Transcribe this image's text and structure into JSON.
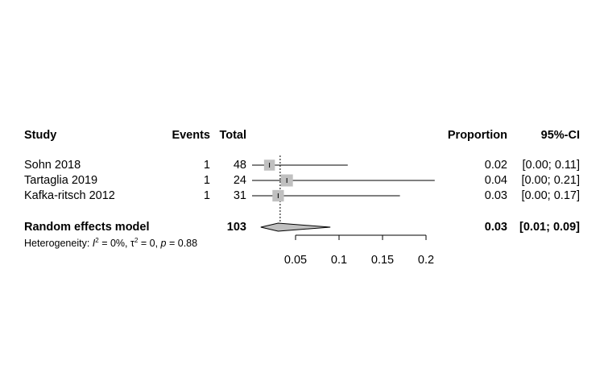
{
  "headers": {
    "study": "Study",
    "events": "Events",
    "total": "Total",
    "proportion": "Proportion",
    "ci": "95%-CI"
  },
  "studies": [
    {
      "name": "Sohn 2018",
      "events": "1",
      "total": "48",
      "proportion": "0.02",
      "ci": "[0.00; 0.11]"
    },
    {
      "name": "Tartaglia 2019",
      "events": "1",
      "total": "24",
      "proportion": "0.04",
      "ci": "[0.00; 0.21]"
    },
    {
      "name": "Kafka-ritsch 2012",
      "events": "1",
      "total": "31",
      "proportion": "0.03",
      "ci": "[0.00; 0.17]"
    }
  ],
  "summary": {
    "label": "Random effects model",
    "total": "103",
    "proportion": "0.03",
    "ci": "[0.01; 0.09]"
  },
  "heterogeneity": {
    "prefix": "Heterogeneity: ",
    "i2_symbol": "I",
    "i2_value": " = 0%, ",
    "tau_symbol": "τ",
    "tau_value": " = 0, ",
    "p_symbol": "p",
    "p_value": " = 0.88"
  },
  "chart_data": {
    "type": "forest",
    "xlim": [
      0,
      0.2
    ],
    "ticks": [
      0.05,
      0.1,
      0.15,
      0.2
    ],
    "tick_labels": [
      "0.05",
      "0.1",
      "0.15",
      "0.2"
    ],
    "reference_line": 0.0323,
    "studies": [
      {
        "name": "Sohn 2018",
        "estimate": 0.02,
        "lower": 0.0,
        "upper": 0.11,
        "weight": 0.9
      },
      {
        "name": "Tartaglia 2019",
        "estimate": 0.04,
        "lower": 0.0,
        "upper": 0.21,
        "weight": 1.0
      },
      {
        "name": "Kafka-ritsch 2012",
        "estimate": 0.03,
        "lower": 0.0,
        "upper": 0.17,
        "weight": 0.95
      }
    ],
    "summary": {
      "estimate": 0.03,
      "lower": 0.01,
      "upper": 0.09
    },
    "colors": {
      "box": "#c0c0c0",
      "diamond": "#c0c0c0",
      "line": "#000000"
    }
  }
}
